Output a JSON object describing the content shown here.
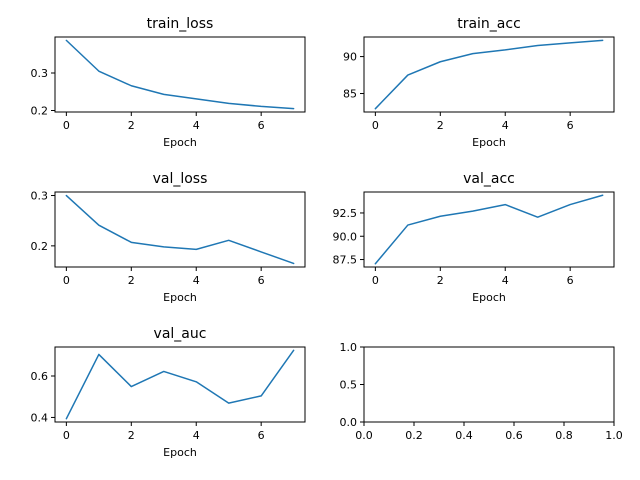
{
  "line_color": "#1f77b4",
  "chart_data": [
    {
      "type": "line",
      "title": "train_loss",
      "xlabel": "Epoch",
      "x": [
        0,
        1,
        2,
        3,
        4,
        5,
        6,
        7
      ],
      "series": [
        {
          "values": [
            0.387,
            0.305,
            0.266,
            0.243,
            0.231,
            0.219,
            0.211,
            0.205
          ]
        }
      ],
      "xlim": [
        -0.35,
        7.35
      ],
      "ylim": [
        0.196,
        0.396
      ],
      "xticks": [
        0,
        2,
        4,
        6
      ],
      "xtick_labels": [
        "0",
        "2",
        "4",
        "6"
      ],
      "yticks": [
        0.2,
        0.3
      ],
      "ytick_labels": [
        "0.2",
        "0.3"
      ],
      "grid": false
    },
    {
      "type": "line",
      "title": "train_acc",
      "xlabel": "Epoch",
      "x": [
        0,
        1,
        2,
        3,
        4,
        5,
        6,
        7
      ],
      "series": [
        {
          "values": [
            82.95,
            87.5,
            89.3,
            90.4,
            90.9,
            91.5,
            91.85,
            92.2
          ]
        }
      ],
      "xlim": [
        -0.35,
        7.35
      ],
      "ylim": [
        82.5,
        92.65
      ],
      "xticks": [
        0,
        2,
        4,
        6
      ],
      "xtick_labels": [
        "0",
        "2",
        "4",
        "6"
      ],
      "yticks": [
        85,
        90
      ],
      "ytick_labels": [
        "85",
        "90"
      ],
      "grid": false
    },
    {
      "type": "line",
      "title": "val_loss",
      "xlabel": "Epoch",
      "x": [
        0,
        1,
        2,
        3,
        4,
        5,
        6,
        7
      ],
      "series": [
        {
          "values": [
            0.3,
            0.241,
            0.207,
            0.198,
            0.193,
            0.211,
            0.188,
            0.165
          ]
        }
      ],
      "xlim": [
        -0.35,
        7.35
      ],
      "ylim": [
        0.158,
        0.307
      ],
      "xticks": [
        0,
        2,
        4,
        6
      ],
      "xtick_labels": [
        "0",
        "2",
        "4",
        "6"
      ],
      "yticks": [
        0.2,
        0.3
      ],
      "ytick_labels": [
        "0.2",
        "0.3"
      ],
      "grid": false
    },
    {
      "type": "line",
      "title": "val_acc",
      "xlabel": "Epoch",
      "x": [
        0,
        1,
        2,
        3,
        4,
        5,
        6,
        7
      ],
      "series": [
        {
          "values": [
            87.05,
            91.2,
            92.15,
            92.7,
            93.4,
            92.05,
            93.4,
            94.4
          ]
        }
      ],
      "xlim": [
        -0.35,
        7.35
      ],
      "ylim": [
        86.7,
        94.75
      ],
      "xticks": [
        0,
        2,
        4,
        6
      ],
      "xtick_labels": [
        "0",
        "2",
        "4",
        "6"
      ],
      "yticks": [
        87.5,
        90.0,
        92.5
      ],
      "ytick_labels": [
        "87.5",
        "90.0",
        "92.5"
      ],
      "grid": false
    },
    {
      "type": "line",
      "title": "val_auc",
      "xlabel": "Epoch",
      "x": [
        0,
        1,
        2,
        3,
        4,
        5,
        6,
        7
      ],
      "series": [
        {
          "values": [
            0.394,
            0.704,
            0.549,
            0.622,
            0.572,
            0.469,
            0.504,
            0.724
          ]
        }
      ],
      "xlim": [
        -0.35,
        7.35
      ],
      "ylim": [
        0.378,
        0.74
      ],
      "xticks": [
        0,
        2,
        4,
        6
      ],
      "xtick_labels": [
        "0",
        "2",
        "4",
        "6"
      ],
      "yticks": [
        0.4,
        0.6
      ],
      "ytick_labels": [
        "0.4",
        "0.6"
      ],
      "grid": false
    },
    {
      "type": "line",
      "title": "",
      "xlabel": "",
      "x": [],
      "series": [],
      "xlim": [
        0,
        1
      ],
      "ylim": [
        0,
        1
      ],
      "xticks": [
        0,
        0.2,
        0.4,
        0.6,
        0.8,
        1.0
      ],
      "xtick_labels": [
        "0.0",
        "0.2",
        "0.4",
        "0.6",
        "0.8",
        "1.0"
      ],
      "yticks": [
        0,
        0.5,
        1.0
      ],
      "ytick_labels": [
        "0.0",
        "0.5",
        "1.0"
      ],
      "grid": false
    }
  ]
}
